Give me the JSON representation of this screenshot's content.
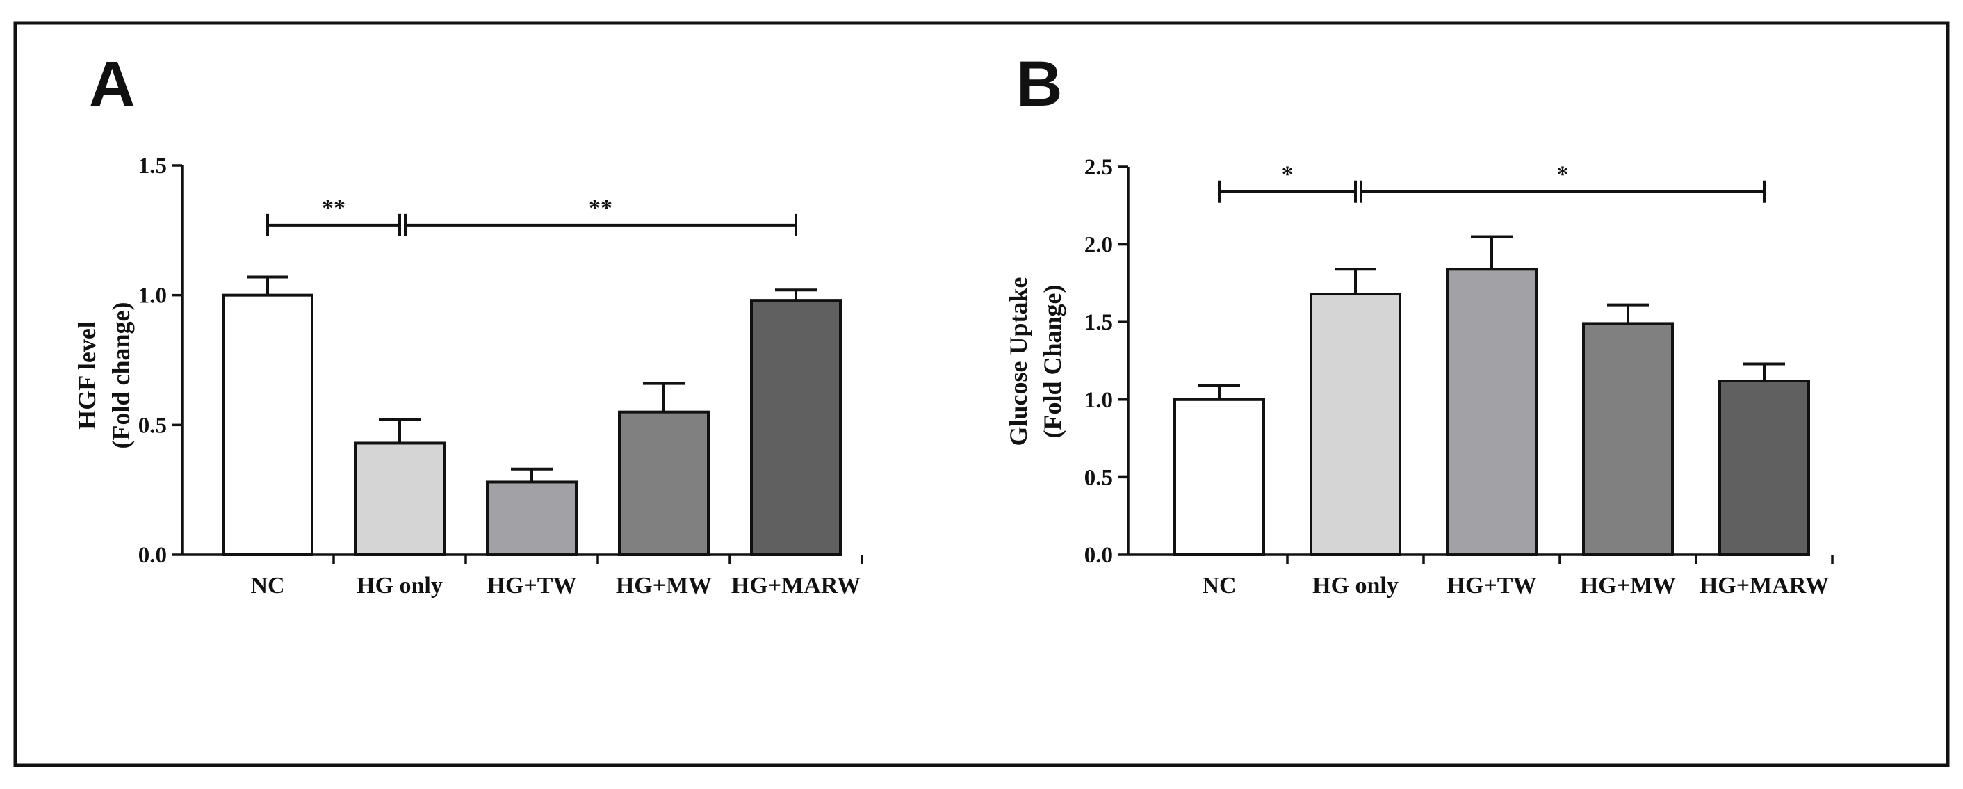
{
  "chart_data": [
    {
      "panel": "A",
      "type": "bar",
      "categories": [
        "NC",
        "HG only",
        "HG+TW",
        "HG+MW",
        "HG+MARW"
      ],
      "values": [
        1.0,
        0.43,
        0.28,
        0.55,
        0.98
      ],
      "errors": [
        0.07,
        0.09,
        0.05,
        0.11,
        0.04
      ],
      "colors": [
        "#ffffff",
        "#d5d5d5",
        "#a2a2a6",
        "#808080",
        "#606060"
      ],
      "ylabel": [
        "HGF level",
        "(Fold change)"
      ],
      "ylim": [
        0,
        1.5
      ],
      "yticks": [
        0.0,
        0.5,
        1.0,
        1.5
      ],
      "ytick_labels": [
        "0.0",
        "0.5",
        "1.0",
        "1.5"
      ],
      "significance": [
        {
          "from": 0,
          "to": 1,
          "label": "**",
          "y": 1.27
        },
        {
          "from": 1,
          "to": 4,
          "label": "**",
          "y": 1.27
        }
      ]
    },
    {
      "panel": "B",
      "type": "bar",
      "categories": [
        "NC",
        "HG only",
        "HG+TW",
        "HG+MW",
        "HG+MARW"
      ],
      "values": [
        1.0,
        1.68,
        1.84,
        1.49,
        1.12
      ],
      "errors": [
        0.09,
        0.16,
        0.21,
        0.12,
        0.11
      ],
      "colors": [
        "#ffffff",
        "#d5d5d5",
        "#a2a2a6",
        "#808080",
        "#606060"
      ],
      "ylabel": [
        "Glucose Uptake",
        "(Fold Change)"
      ],
      "ylim": [
        0,
        2.5
      ],
      "yticks": [
        0.0,
        0.5,
        1.0,
        1.5,
        2.0,
        2.5
      ],
      "ytick_labels": [
        "0.0",
        "0.5",
        "1.0",
        "1.5",
        "2.0",
        "2.5"
      ],
      "significance": [
        {
          "from": 0,
          "to": 1,
          "label": "*",
          "y": 2.34
        },
        {
          "from": 1,
          "to": 4,
          "label": "*",
          "y": 2.34
        }
      ]
    }
  ]
}
